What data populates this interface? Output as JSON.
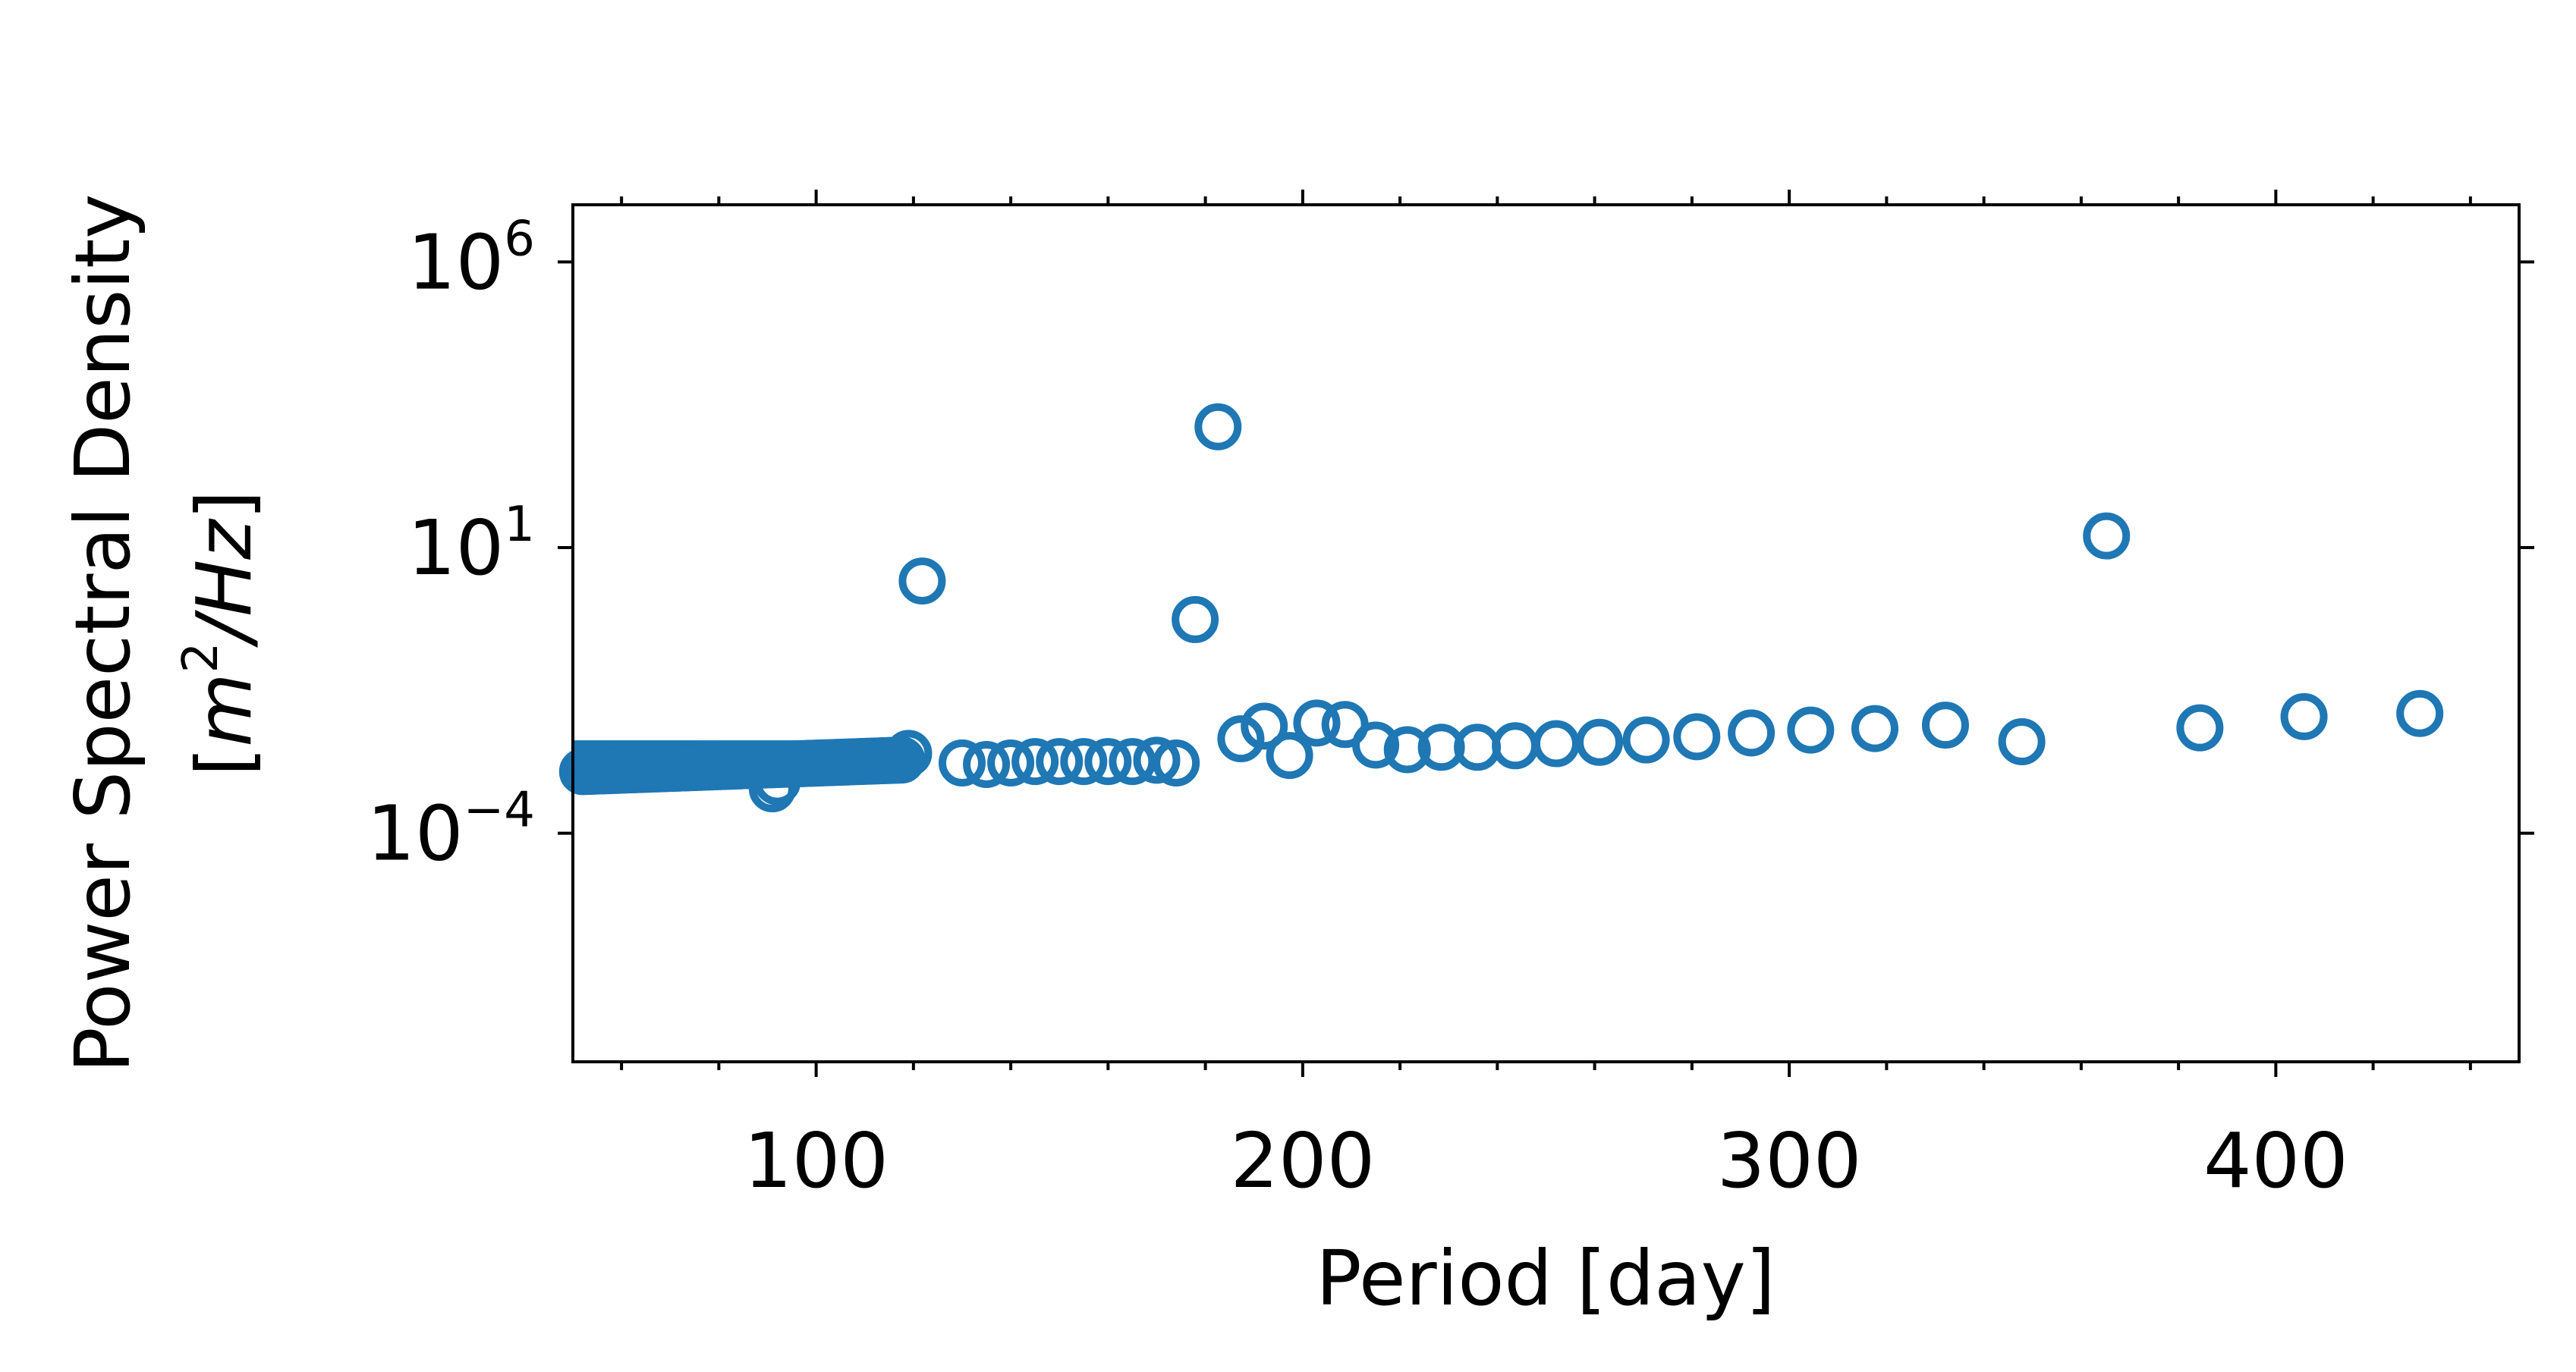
{
  "chart_data": {
    "type": "scatter",
    "title": "",
    "xlabel": "Period [day]",
    "ylabel": "Power Spectral Density",
    "ylabel_unit_prefix": "[",
    "ylabel_unit_m": "m",
    "ylabel_unit_exp": "2",
    "ylabel_unit_rest": "/Hz",
    "ylabel_unit_suffix": "]",
    "x_scale": "linear",
    "y_scale": "log",
    "xlim": [
      50,
      450
    ],
    "ylim": [
      1e-08,
      10000000.0
    ],
    "x_ticks": [
      100,
      200,
      300,
      400
    ],
    "x_tick_labels": [
      "100",
      "200",
      "300",
      "400"
    ],
    "y_ticks": [
      0.0001,
      10,
      1000000
    ],
    "y_tick_base": "10",
    "y_tick_exponents": [
      "−4",
      "1",
      "6"
    ],
    "grid": false,
    "legend": "none",
    "marker": "open-circle",
    "color": "#1f77b4",
    "series": [
      {
        "x": [
          91,
          92,
          119,
          121.8,
          130,
          135,
          140,
          145,
          150,
          155,
          160,
          165,
          170,
          174,
          177.9,
          182.6,
          187.3,
          192.1,
          197.3,
          202.9,
          208.7,
          215,
          221.5,
          228.5,
          235.9,
          243.7,
          252.1,
          261,
          270.6,
          281,
          292.2,
          304.4,
          317.6,
          332.1,
          347.8,
          365.2,
          384.4,
          405.8,
          429.6
        ],
        "y": [
          0.0006,
          0.0008,
          0.0025,
          2.6,
          0.0017,
          0.0016,
          0.0017,
          0.0018,
          0.0018,
          0.0018,
          0.0018,
          0.0018,
          0.0019,
          0.0017,
          0.55,
          1300,
          0.0045,
          0.0075,
          0.0023,
          0.0085,
          0.008,
          0.0035,
          0.0029,
          0.0032,
          0.0032,
          0.0034,
          0.0037,
          0.0039,
          0.0043,
          0.0049,
          0.0057,
          0.0064,
          0.0068,
          0.0078,
          0.004,
          16,
          0.007,
          0.011,
          0.0125
        ]
      }
    ]
  }
}
